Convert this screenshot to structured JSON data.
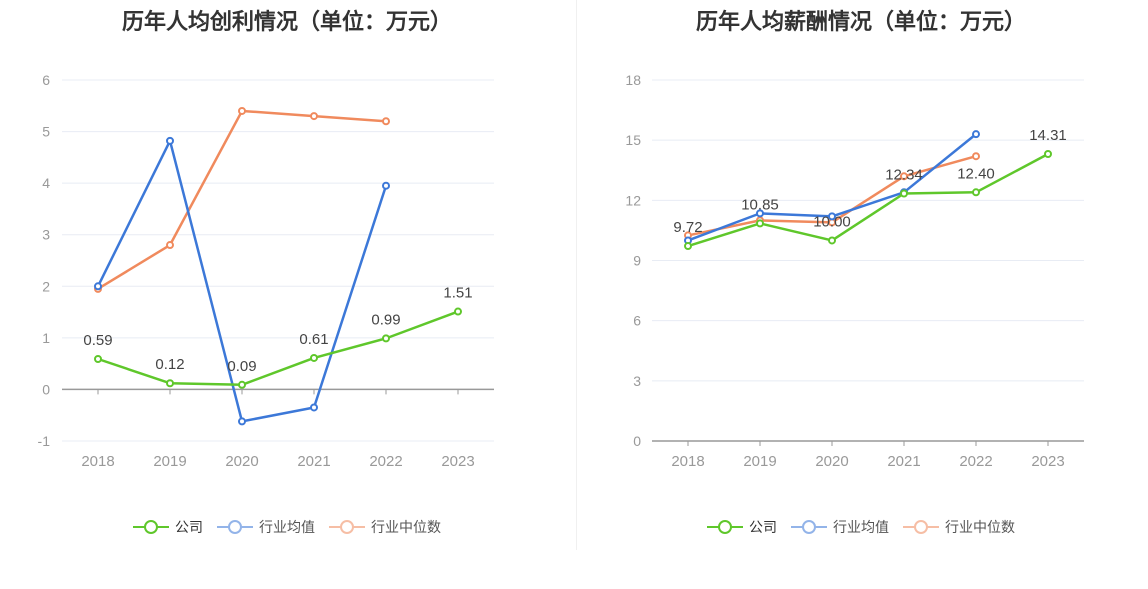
{
  "charts": {
    "left": {
      "title": "历年人均创利情况（单位：万元）"
    },
    "right": {
      "title": "历年人均薪酬情况（单位：万元）"
    }
  },
  "legend": {
    "company": "公司",
    "industry_avg": "行业均值",
    "industry_median": "行业中位数"
  },
  "colors": {
    "company": "#5fc72b",
    "industry_avg": "#3c78d8",
    "industry_median": "#f08a5d",
    "axis": "#999999",
    "grid": "#e8ecf4",
    "label": "#444444"
  },
  "chart_data": [
    {
      "type": "line",
      "title": "历年人均创利情况（单位：万元）",
      "categories": [
        "2018",
        "2019",
        "2020",
        "2021",
        "2022",
        "2023"
      ],
      "ylim": [
        -1,
        6
      ],
      "yticks": [
        "-1",
        "0",
        "1",
        "2",
        "3",
        "4",
        "5",
        "6"
      ],
      "grid": true,
      "legend_position": "bottom",
      "series": [
        {
          "name": "公司",
          "key": "company",
          "values": [
            0.59,
            0.12,
            0.09,
            0.61,
            0.99,
            1.51
          ],
          "labels": [
            "0.59",
            "0.12",
            "0.09",
            "0.61",
            "0.99",
            "1.51"
          ]
        },
        {
          "name": "行业均值",
          "key": "industry_avg",
          "values": [
            2.0,
            4.82,
            -0.62,
            -0.35,
            3.95,
            null
          ]
        },
        {
          "name": "行业中位数",
          "key": "industry_median",
          "values": [
            1.95,
            2.8,
            5.4,
            5.3,
            5.2,
            null
          ]
        }
      ]
    },
    {
      "type": "line",
      "title": "历年人均薪酬情况（单位：万元）",
      "categories": [
        "2018",
        "2019",
        "2020",
        "2021",
        "2022",
        "2023"
      ],
      "ylim": [
        0,
        18
      ],
      "yticks": [
        "0",
        "3",
        "6",
        "9",
        "12",
        "15",
        "18"
      ],
      "grid": true,
      "legend_position": "bottom",
      "series": [
        {
          "name": "公司",
          "key": "company",
          "values": [
            9.72,
            10.85,
            10.0,
            12.34,
            12.4,
            14.31
          ],
          "labels": [
            "9.72",
            "10.85",
            "10.00",
            "12.34",
            "12.40",
            "14.31"
          ]
        },
        {
          "name": "行业均值",
          "key": "industry_avg",
          "values": [
            10.0,
            11.35,
            11.2,
            12.4,
            15.3,
            null
          ]
        },
        {
          "name": "行业中位数",
          "key": "industry_median",
          "values": [
            10.25,
            11.0,
            10.9,
            13.2,
            14.2,
            null
          ]
        }
      ]
    }
  ]
}
